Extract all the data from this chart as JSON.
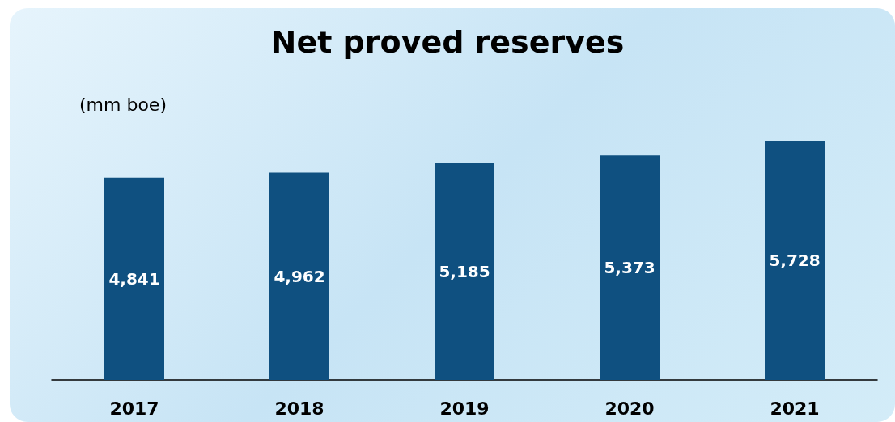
{
  "chart_data": {
    "type": "bar",
    "title": "Net proved reserves",
    "ylabel": "(mm boe)",
    "categories": [
      "2017",
      "2018",
      "2019",
      "2020",
      "2021"
    ],
    "values": [
      4841,
      4962,
      5185,
      5373,
      5728
    ],
    "value_labels": [
      "4,841",
      "4,962",
      "5,185",
      "5,373",
      "5,728"
    ],
    "color": "#0f5080"
  }
}
